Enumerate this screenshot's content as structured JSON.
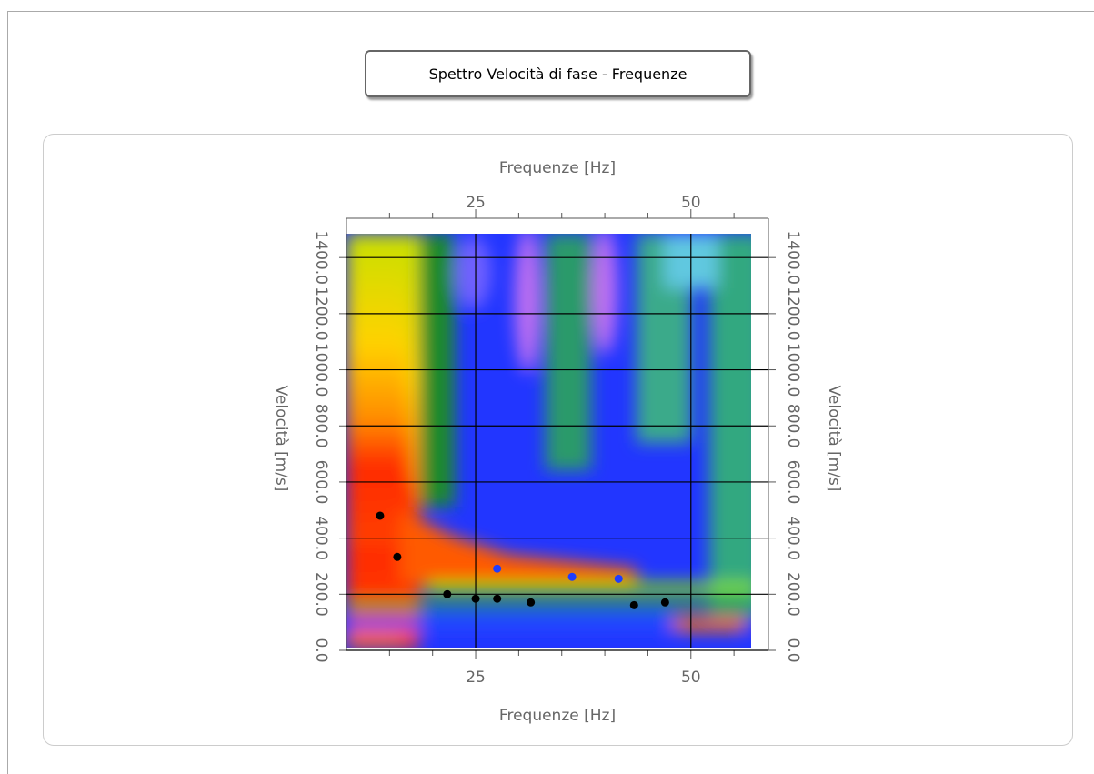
{
  "button": {
    "label": "Spettro Velocità di fase - Frequenze"
  },
  "chart_data": {
    "type": "scatter",
    "x_label": "Frequenze [Hz]",
    "y_label": "Velocità [m/s]",
    "xlim": [
      10,
      59
    ],
    "xticks": [
      25,
      50
    ],
    "xminorticks": [
      15,
      20,
      30,
      35,
      40,
      45,
      55
    ],
    "ylim": [
      0,
      1540
    ],
    "yticks": [
      {
        "value": 0,
        "label": "0.0"
      },
      {
        "value": 200,
        "label": "200.0"
      },
      {
        "value": 400,
        "label": "400.0"
      },
      {
        "value": 600,
        "label": "600.0"
      },
      {
        "value": 800,
        "label": "800.0"
      },
      {
        "value": 1000,
        "label": "1000.0"
      },
      {
        "value": 1200,
        "label": "1200.0"
      },
      {
        "value": 1400,
        "label": "1400.0"
      }
    ],
    "grid": true,
    "grid_color": "#000000",
    "series": [
      {
        "color": "#000000",
        "x": [
          13.9,
          15.9,
          21.7,
          25,
          27.5,
          31.4,
          43.4,
          47
        ],
        "values": [
          480,
          333,
          200,
          184,
          184,
          171,
          161,
          171
        ]
      },
      {
        "color": "#1f3dff",
        "x": [
          27.5,
          36.2,
          41.6
        ],
        "values": [
          291,
          262,
          255
        ]
      }
    ]
  }
}
